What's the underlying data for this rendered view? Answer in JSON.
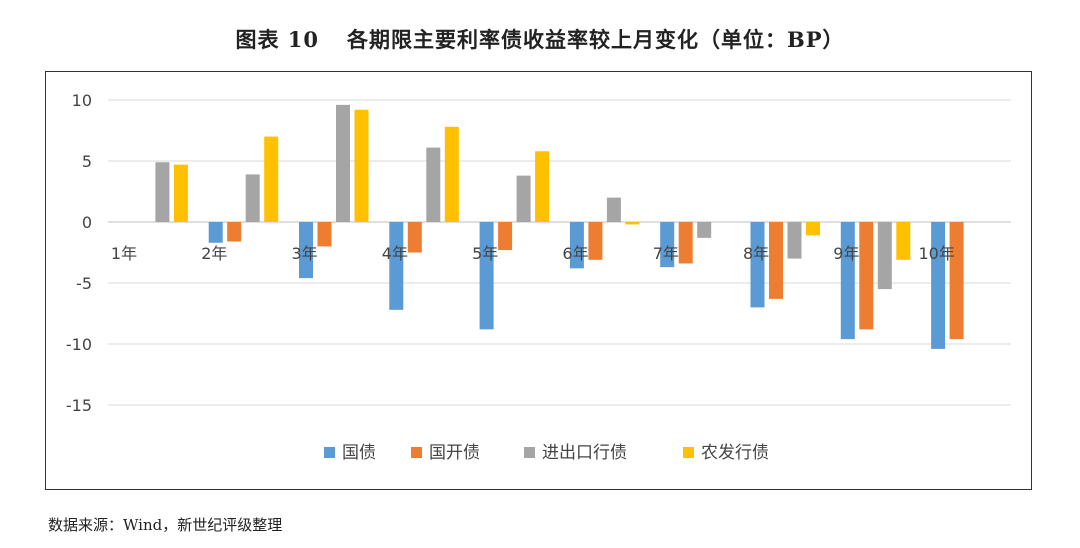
{
  "header": {
    "figure_no": "图表 10",
    "title_text": "各期限主要利率债收益率较上月变化（单位：BP）"
  },
  "source_note": "数据来源：Wind，新世纪评级整理",
  "colors": {
    "国债": "#5b9bd5",
    "国开债": "#ed7d31",
    "进出口行债": "#a5a5a5",
    "农发行债": "#ffc000"
  },
  "chart_data": {
    "type": "bar",
    "title": "各期限主要利率债收益率较上月变化（单位：BP）",
    "xlabel": "",
    "ylabel": "",
    "ylim": [
      -15,
      10
    ],
    "yticks": [
      10,
      5,
      0,
      -5,
      -10,
      -15
    ],
    "grid": true,
    "legend_position": "bottom",
    "categories": [
      "1年",
      "2年",
      "3年",
      "4年",
      "5年",
      "6年",
      "7年",
      "8年",
      "9年",
      "10年"
    ],
    "series": [
      {
        "name": "国债",
        "values": [
          0,
          -1.7,
          -4.6,
          -7.2,
          -8.8,
          -3.8,
          -3.7,
          -7.0,
          -9.6,
          -10.4
        ]
      },
      {
        "name": "国开债",
        "values": [
          0,
          -1.6,
          -2.0,
          -2.5,
          -2.3,
          -3.1,
          -3.4,
          -6.3,
          -8.8,
          -9.6
        ]
      },
      {
        "name": "进出口行债",
        "values": [
          4.9,
          3.9,
          9.6,
          6.1,
          3.8,
          2.0,
          -1.3,
          -3.0,
          -5.5,
          0
        ]
      },
      {
        "name": "农发行债",
        "values": [
          4.7,
          7.0,
          9.2,
          7.8,
          5.8,
          -0.2,
          0,
          -1.1,
          -3.1,
          0
        ]
      }
    ]
  }
}
